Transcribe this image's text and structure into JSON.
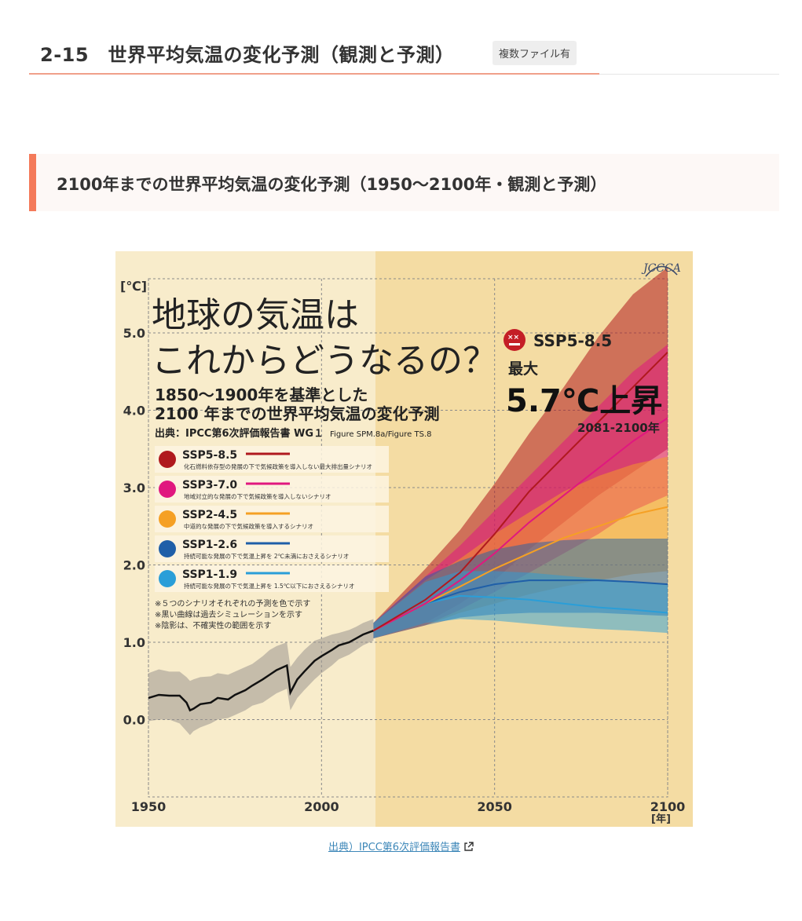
{
  "header": {
    "title": "2-15　世界平均気温の変化予測（観測と予測）",
    "badge": "複数ファイル有"
  },
  "section": {
    "title": "2100年までの世界平均気温の変化予測（1950〜2100年・観測と予測）"
  },
  "figure": {
    "logo": "JCCCA",
    "headline_line1": "地球の気温は",
    "headline_line2": "これからどうなるの？",
    "subtitle_line1": "1850～1900年を基準とした",
    "subtitle_line2": "2100 年までの世界平均気温の変化予測",
    "source_label": "出典：IPCC第6次評価報告書 WG１",
    "source_figure": "Figure SPM.8a/Figure TS.8",
    "callout_scenario": "SSP5-8.5",
    "callout_max": "最大",
    "callout_value": "5.7℃上昇",
    "callout_period": "2081-2100年",
    "notes": [
      "※５つのシナリオそれぞれの予測を色で示す",
      "※黒い曲線は過去シミュレーションを示す",
      "※陰影は、不確実性の範囲を示す"
    ],
    "colors": {
      "observed": "#111111",
      "ssp585": "#b0191e",
      "ssp370": "#e0187f",
      "ssp245": "#f5a024",
      "ssp126": "#1f5fa8",
      "ssp119": "#2a9ed8"
    }
  },
  "chart_data": {
    "type": "line",
    "xlabel": "[年]",
    "ylabel": "[℃]",
    "xlim": [
      1950,
      2100
    ],
    "ylim": [
      -1.0,
      5.7
    ],
    "xticks": [
      1950,
      2000,
      2050,
      2100
    ],
    "yticks": [
      0.0,
      1.0,
      2.0,
      3.0,
      4.0,
      5.0
    ],
    "grid": true,
    "legend_position": "left",
    "observed": {
      "name": "",
      "x": [
        1950,
        1953,
        1956,
        1959,
        1961,
        1962,
        1963,
        1965,
        1968,
        1970,
        1973,
        1975,
        1978,
        1980,
        1983,
        1985,
        1987,
        1990,
        1991,
        1993,
        1995,
        1998,
        2000,
        2003,
        2005,
        2008,
        2010,
        2012,
        2015
      ],
      "y": [
        0.28,
        0.32,
        0.31,
        0.31,
        0.22,
        0.12,
        0.14,
        0.2,
        0.22,
        0.28,
        0.26,
        0.32,
        0.38,
        0.44,
        0.52,
        0.58,
        0.64,
        0.7,
        0.35,
        0.52,
        0.62,
        0.76,
        0.82,
        0.9,
        0.96,
        1.0,
        1.05,
        1.1,
        1.15
      ],
      "lower": [
        -0.02,
        0.0,
        0.0,
        -0.05,
        -0.15,
        -0.2,
        -0.15,
        -0.1,
        -0.05,
        0.0,
        0.02,
        0.06,
        0.12,
        0.18,
        0.22,
        0.28,
        0.34,
        0.4,
        0.12,
        0.28,
        0.38,
        0.52,
        0.6,
        0.7,
        0.78,
        0.84,
        0.9,
        0.96,
        1.02
      ],
      "upper": [
        0.6,
        0.65,
        0.62,
        0.62,
        0.55,
        0.5,
        0.52,
        0.55,
        0.56,
        0.6,
        0.58,
        0.62,
        0.68,
        0.72,
        0.82,
        0.9,
        0.95,
        1.0,
        0.68,
        0.8,
        0.9,
        1.02,
        1.05,
        1.1,
        1.12,
        1.16,
        1.2,
        1.25,
        1.3
      ]
    },
    "series": [
      {
        "name": "SSP5-8.5",
        "description": "化石燃料依存型の発展の下で気候政策を導入しない最大排出量シナリオ",
        "x": [
          2015,
          2030,
          2040,
          2050,
          2060,
          2070,
          2080,
          2090,
          2100
        ],
        "y": [
          1.15,
          1.55,
          1.9,
          2.4,
          2.95,
          3.4,
          3.85,
          4.3,
          4.75
        ],
        "lower": [
          1.05,
          1.25,
          1.5,
          1.8,
          2.2,
          2.55,
          2.9,
          3.2,
          3.5
        ],
        "upper": [
          1.25,
          1.95,
          2.45,
          3.05,
          3.7,
          4.3,
          4.95,
          5.5,
          5.85
        ]
      },
      {
        "name": "SSP3-7.0",
        "description": "地域対立的な発展の下で気候政策を導入しないシナリオ",
        "x": [
          2015,
          2030,
          2040,
          2050,
          2060,
          2070,
          2080,
          2090,
          2100
        ],
        "y": [
          1.15,
          1.5,
          1.8,
          2.15,
          2.55,
          2.9,
          3.25,
          3.6,
          3.9
        ],
        "lower": [
          1.05,
          1.22,
          1.42,
          1.65,
          1.9,
          2.15,
          2.4,
          2.7,
          2.9
        ],
        "upper": [
          1.25,
          1.85,
          2.25,
          2.7,
          3.15,
          3.6,
          4.05,
          4.5,
          4.85
        ]
      },
      {
        "name": "SSP2-4.5",
        "description": "中道的な発展の下で気候政策を導入するシナリオ",
        "x": [
          2015,
          2030,
          2040,
          2050,
          2060,
          2070,
          2080,
          2090,
          2100
        ],
        "y": [
          1.15,
          1.5,
          1.72,
          1.95,
          2.15,
          2.35,
          2.5,
          2.65,
          2.75
        ],
        "lower": [
          1.05,
          1.22,
          1.38,
          1.5,
          1.62,
          1.72,
          1.8,
          1.88,
          1.92
        ],
        "upper": [
          1.25,
          1.8,
          2.08,
          2.4,
          2.68,
          2.95,
          3.15,
          3.3,
          3.4
        ]
      },
      {
        "name": "SSP1-2.6",
        "description": "持続可能な発展の下で気温上昇を 2℃未満におさえるシナリオ",
        "x": [
          2015,
          2030,
          2040,
          2050,
          2060,
          2070,
          2080,
          2090,
          2100
        ],
        "y": [
          1.15,
          1.5,
          1.65,
          1.75,
          1.8,
          1.8,
          1.8,
          1.78,
          1.75
        ],
        "lower": [
          1.05,
          1.22,
          1.32,
          1.36,
          1.38,
          1.38,
          1.38,
          1.36,
          1.34
        ],
        "upper": [
          1.25,
          1.85,
          2.05,
          2.2,
          2.28,
          2.32,
          2.34,
          2.34,
          2.34
        ]
      },
      {
        "name": "SSP1-1.9",
        "description": "持続可能な発展の下で気温上昇を 1.5℃以下におさえるシナリオ",
        "x": [
          2015,
          2030,
          2040,
          2050,
          2060,
          2070,
          2080,
          2090,
          2100
        ],
        "y": [
          1.15,
          1.5,
          1.6,
          1.58,
          1.55,
          1.5,
          1.45,
          1.42,
          1.38
        ],
        "lower": [
          1.05,
          1.25,
          1.3,
          1.28,
          1.24,
          1.2,
          1.17,
          1.15,
          1.12
        ],
        "upper": [
          1.25,
          1.78,
          1.92,
          1.92,
          1.9,
          1.86,
          1.82,
          1.78,
          1.75
        ]
      }
    ]
  },
  "caption": {
    "link_text": "出典）IPCC第6次評価報告書"
  }
}
